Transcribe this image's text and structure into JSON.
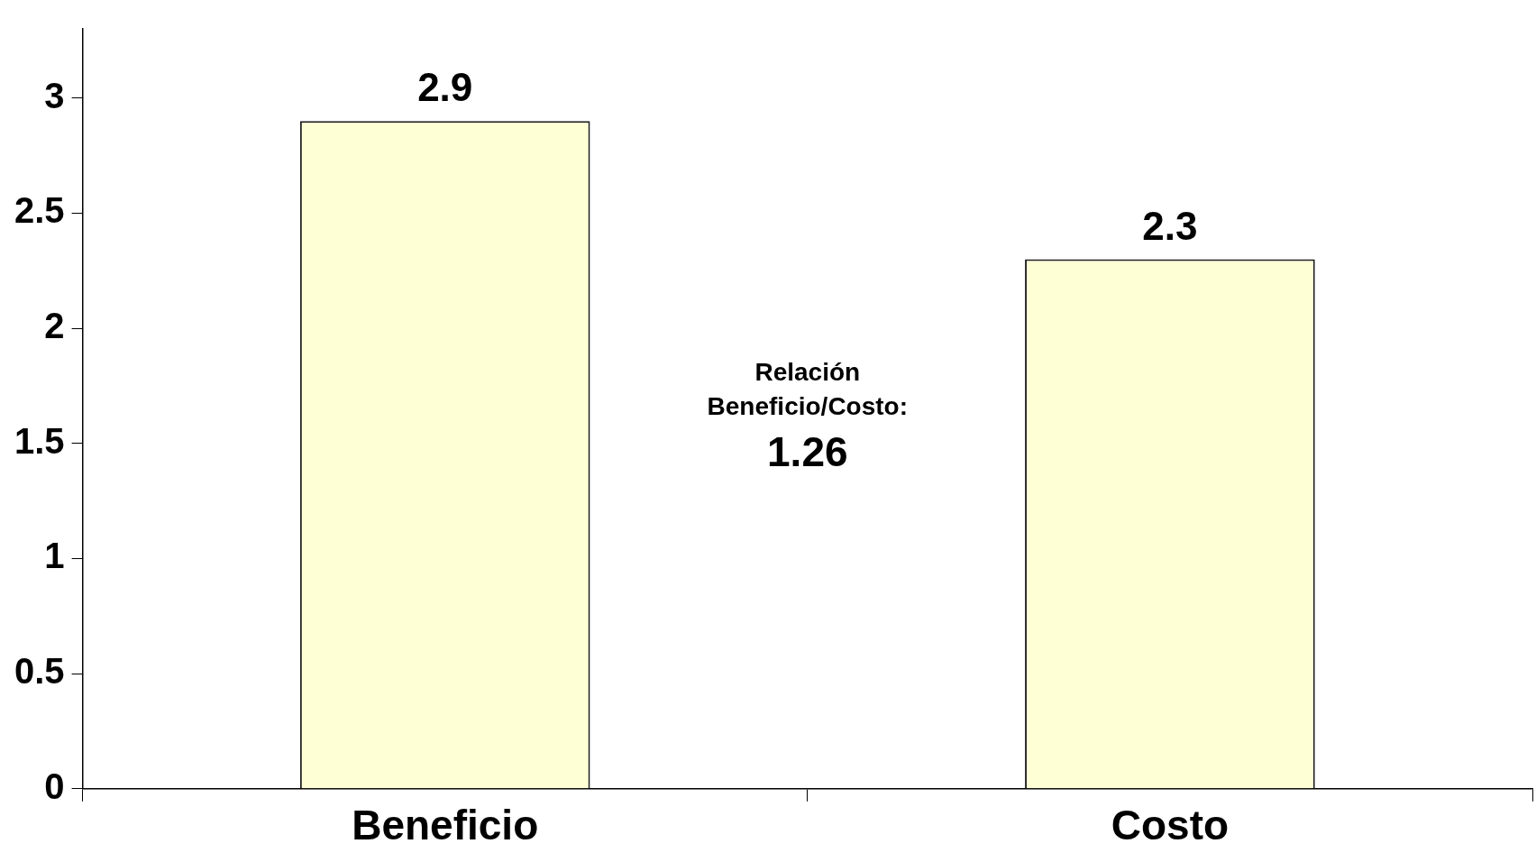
{
  "chart_data": {
    "type": "bar",
    "categories": [
      "Beneficio",
      "Costo"
    ],
    "values": [
      2.9,
      2.3
    ],
    "color": "#ffffd6",
    "ylim": [
      0,
      3.3
    ],
    "yticks": [
      0,
      0.5,
      1,
      1.5,
      2,
      2.5,
      3
    ],
    "grid": false,
    "legend": false,
    "data_labels": true,
    "annotations": [
      "Relación Beneficio/Costo:",
      "1.26"
    ]
  }
}
